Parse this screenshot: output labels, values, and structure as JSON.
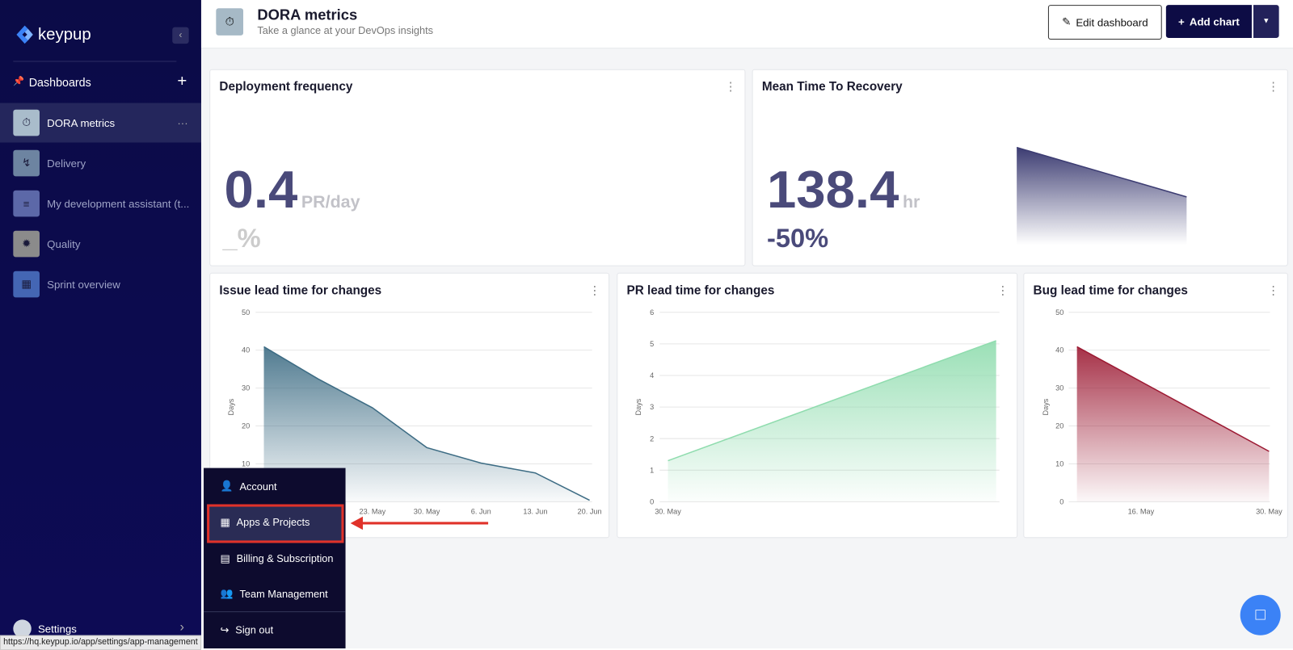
{
  "sidebar": {
    "brand": "keypup",
    "dashboards_label": "Dashboards",
    "items": [
      "DORA metrics",
      "Delivery",
      "My development assistant (t...",
      "Quality",
      "Sprint overview"
    ],
    "settings": "Settings"
  },
  "header": {
    "title": "DORA metrics",
    "subtitle": "Take a glance at your DevOps insights",
    "edit_button": "Edit dashboard",
    "add_button": "Add chart"
  },
  "kpis": [
    {
      "title": "Deployment frequency",
      "value": 0.4,
      "unit": "PR/day",
      "change": "_%"
    },
    {
      "title": "Mean Time To Recovery",
      "value": 138.4,
      "unit": "hr",
      "change": "-50%"
    }
  ],
  "charts": [
    {
      "type": "area",
      "title": "Issue lead time for changes",
      "ylabel": "Days",
      "ylim": [
        0,
        50
      ],
      "yticks": [
        0,
        10,
        20,
        30,
        40,
        50
      ],
      "categories": [
        null,
        null,
        "23. May",
        "30. May",
        "6. Jun",
        "13. Jun",
        "20. Jun"
      ],
      "values": [
        40.9,
        32.4,
        24.8,
        14.3,
        10.2,
        7.6,
        0.4
      ],
      "color": "#3d6c84"
    },
    {
      "type": "area",
      "title": "PR lead time for changes",
      "ylabel": "Days",
      "ylim": [
        0,
        6
      ],
      "yticks": [
        0,
        1,
        2,
        3,
        4,
        5,
        6
      ],
      "categories": [
        "30. May",
        null
      ],
      "values": [
        1.3,
        5.1
      ],
      "color": "#8fdcae"
    },
    {
      "type": "area",
      "title": "Bug lead time for changes",
      "ylabel": "Days",
      "ylim": [
        0,
        50
      ],
      "yticks": [
        0,
        10,
        20,
        30,
        40,
        50
      ],
      "categories": [
        null,
        "16. May",
        null,
        "30. May"
      ],
      "values": [
        40.9,
        31.7,
        22.5,
        13.3
      ],
      "color": "#9c1a33"
    }
  ],
  "menu": {
    "items": [
      "Account",
      "Apps & Projects",
      "Billing & Subscription",
      "Team Management",
      "Sign out"
    ]
  },
  "status_url": "https://hq.keypup.io/app/settings/app-management"
}
